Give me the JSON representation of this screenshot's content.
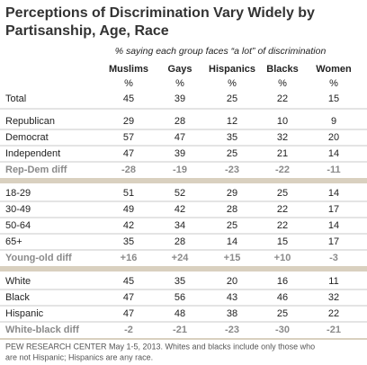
{
  "title": [
    "Perceptions of Discrimination Vary Widely by",
    "Partisanship, Age, Race"
  ],
  "subtitle": "% saying each group faces “a lot” of discrimination",
  "columns": [
    "Muslims",
    "Gays",
    "Hispanics",
    "Blacks",
    "Women"
  ],
  "unit_row": [
    "%",
    "%",
    "%",
    "%",
    "%"
  ],
  "total": {
    "label": "Total",
    "values": [
      "45",
      "39",
      "25",
      "22",
      "15"
    ]
  },
  "groups": [
    {
      "rows": [
        {
          "label": "Republican",
          "values": [
            "29",
            "28",
            "12",
            "10",
            "9"
          ]
        },
        {
          "label": "Democrat",
          "values": [
            "57",
            "47",
            "35",
            "32",
            "20"
          ]
        },
        {
          "label": "Independent",
          "values": [
            "47",
            "39",
            "25",
            "21",
            "14"
          ]
        }
      ],
      "diff": {
        "label": "Rep-Dem diff",
        "values": [
          "-28",
          "-19",
          "-23",
          "-22",
          "-11"
        ]
      }
    },
    {
      "rows": [
        {
          "label": "18-29",
          "values": [
            "51",
            "52",
            "29",
            "25",
            "14"
          ]
        },
        {
          "label": "30-49",
          "values": [
            "49",
            "42",
            "28",
            "22",
            "17"
          ]
        },
        {
          "label": "50-64",
          "values": [
            "42",
            "34",
            "25",
            "22",
            "14"
          ]
        },
        {
          "label": "65+",
          "values": [
            "35",
            "28",
            "14",
            "15",
            "17"
          ]
        }
      ],
      "diff": {
        "label": "Young-old diff",
        "values": [
          "+16",
          "+24",
          "+15",
          "+10",
          "-3"
        ]
      }
    },
    {
      "rows": [
        {
          "label": "White",
          "values": [
            "45",
            "35",
            "20",
            "16",
            "11"
          ]
        },
        {
          "label": "Black",
          "values": [
            "47",
            "56",
            "43",
            "46",
            "32"
          ]
        },
        {
          "label": "Hispanic",
          "values": [
            "47",
            "48",
            "38",
            "25",
            "22"
          ]
        }
      ],
      "diff": {
        "label": "White-black diff",
        "values": [
          "-2",
          "-21",
          "-23",
          "-30",
          "-21"
        ]
      }
    }
  ],
  "footer": [
    "PEW RESEARCH CENTER May 1-5, 2013. Whites and blacks include only those who",
    "are not Hispanic; Hispanics are any race."
  ]
}
